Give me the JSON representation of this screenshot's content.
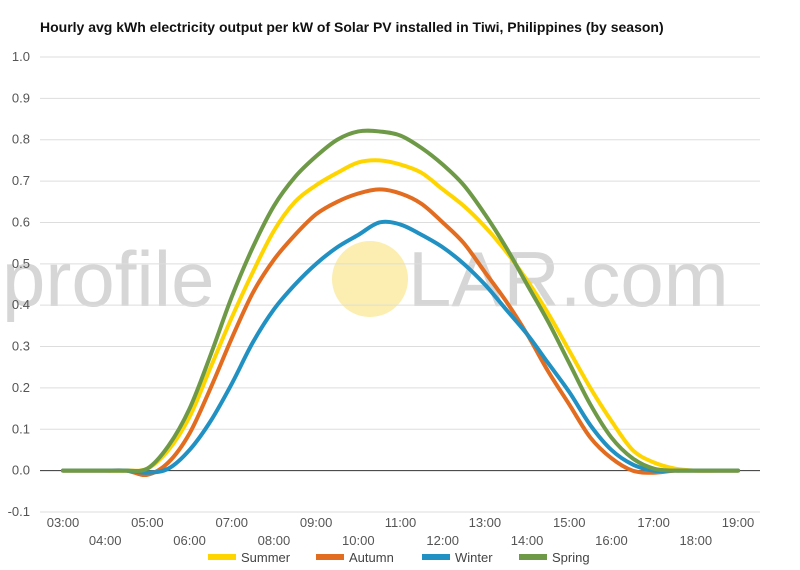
{
  "title": "Hourly avg kWh electricity output per kW of Solar PV installed in Tiwi, Philippines (by season)",
  "watermark": {
    "left": "profile",
    "right": "LAR.com",
    "sun_color": "#fbeeb0"
  },
  "chart_data": {
    "type": "line",
    "title": "Hourly avg kWh electricity output per kW of Solar PV installed in Tiwi, Philippines (by season)",
    "xlabel": "",
    "ylabel": "",
    "x": [
      3,
      3.5,
      4,
      4.5,
      5,
      5.5,
      6,
      6.5,
      7,
      7.5,
      8,
      8.5,
      9,
      9.5,
      10,
      10.5,
      11,
      11.5,
      12,
      12.5,
      13,
      13.5,
      14,
      14.5,
      15,
      15.5,
      16,
      16.5,
      17,
      17.5,
      18,
      18.5,
      19
    ],
    "x_tick_labels": [
      "03:00",
      "04:00",
      "05:00",
      "06:00",
      "07:00",
      "08:00",
      "09:00",
      "10:00",
      "11:00",
      "12:00",
      "13:00",
      "14:00",
      "15:00",
      "16:00",
      "17:00",
      "18:00",
      "19:00"
    ],
    "xlim": [
      3,
      19
    ],
    "ylim": [
      -0.1,
      1.0
    ],
    "y_ticks": [
      "-0.1",
      "0.0",
      "0.1",
      "0.2",
      "0.3",
      "0.4",
      "0.5",
      "0.6",
      "0.7",
      "0.8",
      "0.9",
      "1.0"
    ],
    "grid": true,
    "legend_position": "bottom",
    "series": [
      {
        "name": "Summer",
        "color": "#ffd500",
        "values": [
          0,
          0,
          0,
          0,
          0.005,
          0.05,
          0.13,
          0.25,
          0.37,
          0.48,
          0.58,
          0.65,
          0.69,
          0.72,
          0.745,
          0.75,
          0.74,
          0.72,
          0.68,
          0.64,
          0.59,
          0.53,
          0.46,
          0.38,
          0.29,
          0.2,
          0.12,
          0.05,
          0.02,
          0.005,
          0,
          0,
          0
        ]
      },
      {
        "name": "Autumn",
        "color": "#e26c1f",
        "values": [
          0,
          0,
          0,
          0,
          -0.01,
          0.02,
          0.09,
          0.2,
          0.32,
          0.43,
          0.51,
          0.57,
          0.62,
          0.65,
          0.67,
          0.68,
          0.67,
          0.645,
          0.6,
          0.55,
          0.48,
          0.41,
          0.33,
          0.24,
          0.16,
          0.08,
          0.03,
          0,
          -0.005,
          0,
          0,
          0,
          0
        ]
      },
      {
        "name": "Winter",
        "color": "#2091c2",
        "values": [
          0,
          0,
          0,
          0,
          -0.005,
          0.005,
          0.05,
          0.12,
          0.21,
          0.31,
          0.39,
          0.45,
          0.5,
          0.54,
          0.57,
          0.6,
          0.595,
          0.57,
          0.54,
          0.5,
          0.45,
          0.39,
          0.33,
          0.26,
          0.19,
          0.11,
          0.05,
          0.015,
          0,
          0,
          0,
          0,
          0
        ]
      },
      {
        "name": "Spring",
        "color": "#6e9a47",
        "values": [
          0,
          0,
          0,
          0,
          0.005,
          0.06,
          0.15,
          0.28,
          0.42,
          0.54,
          0.64,
          0.71,
          0.76,
          0.8,
          0.82,
          0.82,
          0.81,
          0.78,
          0.74,
          0.69,
          0.62,
          0.54,
          0.45,
          0.36,
          0.26,
          0.16,
          0.08,
          0.03,
          0.005,
          0,
          0,
          0,
          0
        ]
      }
    ]
  }
}
